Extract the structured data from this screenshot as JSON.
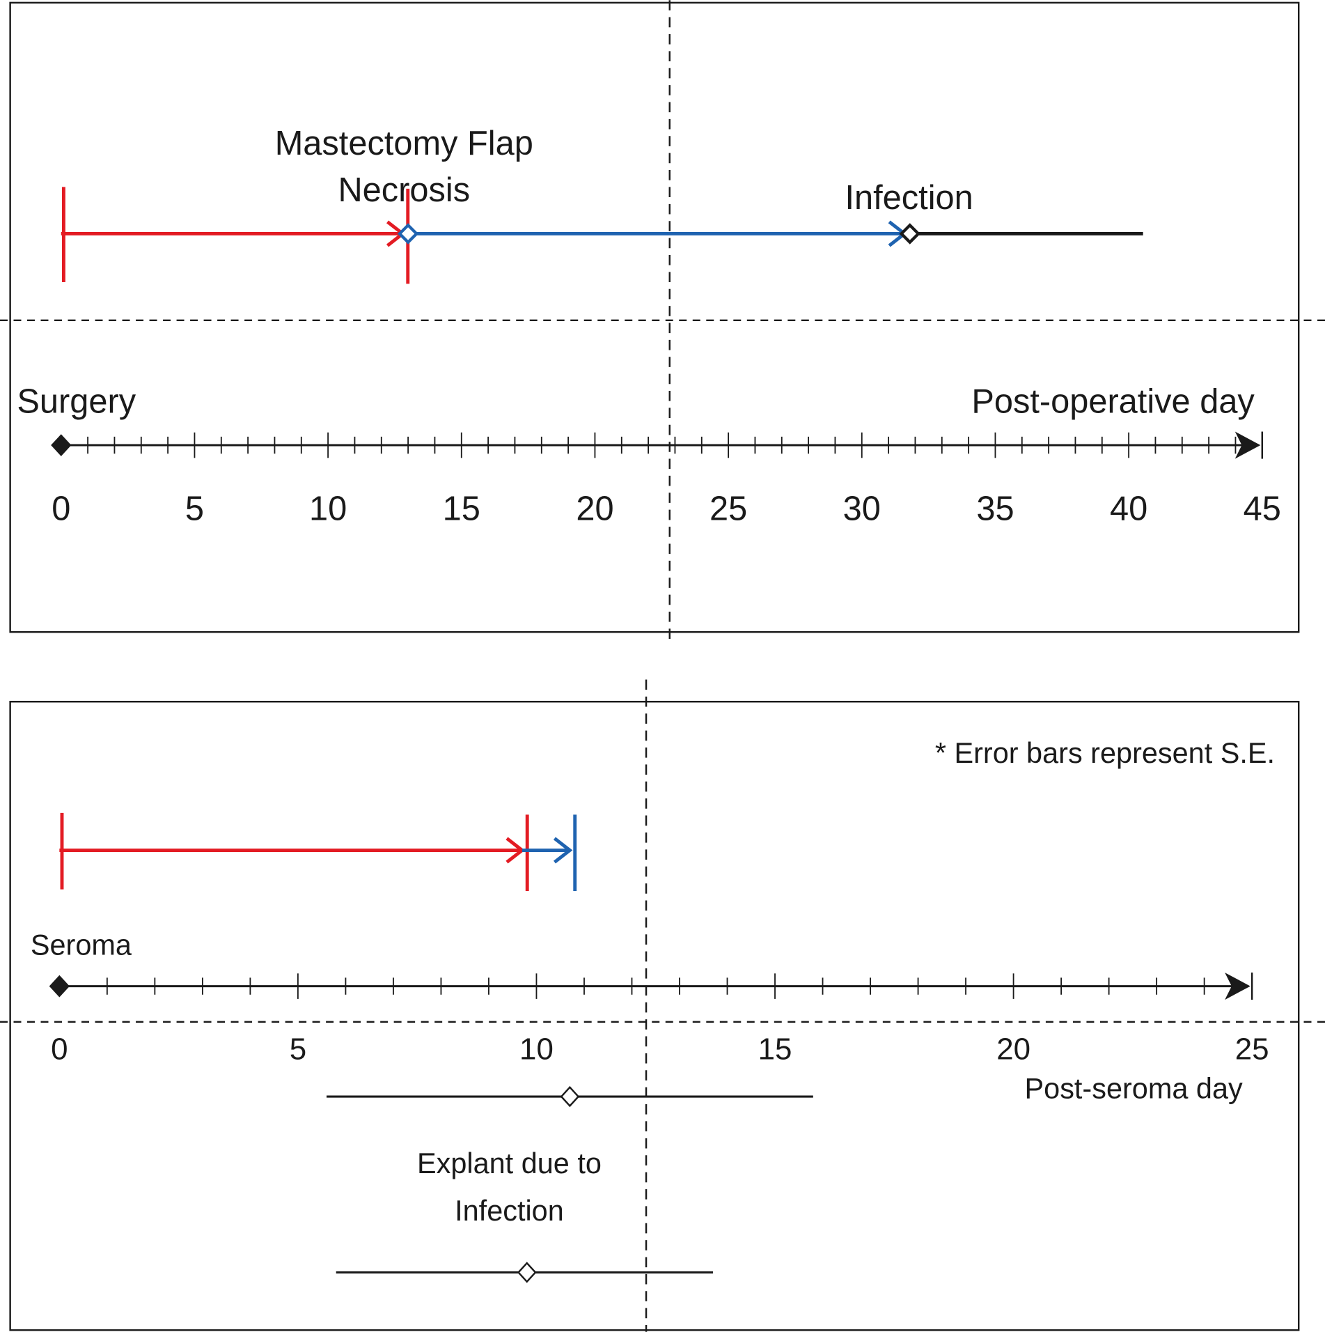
{
  "colors": {
    "red": "#e31b23",
    "blue": "#1f63b0",
    "black": "#1a1a1a"
  },
  "chart_data": [
    {
      "type": "timeline",
      "axis": {
        "min": 0,
        "max": 45,
        "major_step": 5,
        "minor_step": 1,
        "tick_labels": [
          "0",
          "5",
          "10",
          "15",
          "20",
          "25",
          "30",
          "35",
          "40",
          "45"
        ],
        "start_label": "Surgery",
        "xlabel": "Post-operative day"
      },
      "reference_line_day": 22.8,
      "annotations": {
        "necrosis_line1": "Mastectomy Flap",
        "necrosis_line2": "Necrosis",
        "infection": "Infection"
      },
      "segments": [
        {
          "color": "red",
          "from": 0,
          "to": 12.8,
          "start_bar": true,
          "end_bar": true,
          "arrow": true
        },
        {
          "color": "blue",
          "from": 13.0,
          "to": 31.6,
          "start_marker": "diamond",
          "arrow": true
        },
        {
          "color": "black",
          "from": 31.8,
          "to": 40.6,
          "start_marker": "diamond"
        }
      ]
    },
    {
      "type": "timeline",
      "axis": {
        "min": 0,
        "max": 25,
        "major_step": 5,
        "minor_step": 1,
        "tick_labels": [
          "0",
          "5",
          "10",
          "15",
          "20",
          "25"
        ],
        "start_label": "Seroma",
        "xlabel": "Post-seroma day"
      },
      "note": "* Error bars represent S.E.",
      "reference_line_day": 12.3,
      "segments": [
        {
          "color": "red",
          "from": 0,
          "to": 9.7,
          "start_bar": true,
          "end_bar": true,
          "arrow": true
        },
        {
          "color": "blue",
          "from": 9.7,
          "to": 10.7,
          "end_bar": true,
          "arrow": true
        }
      ],
      "error_bars": [
        {
          "mean": 10.7,
          "low": 5.6,
          "high": 15.8
        },
        {
          "mean": 9.8,
          "low": 5.8,
          "high": 13.7,
          "label_line1": "Explant due to",
          "label_line2": "Infection"
        }
      ]
    }
  ]
}
